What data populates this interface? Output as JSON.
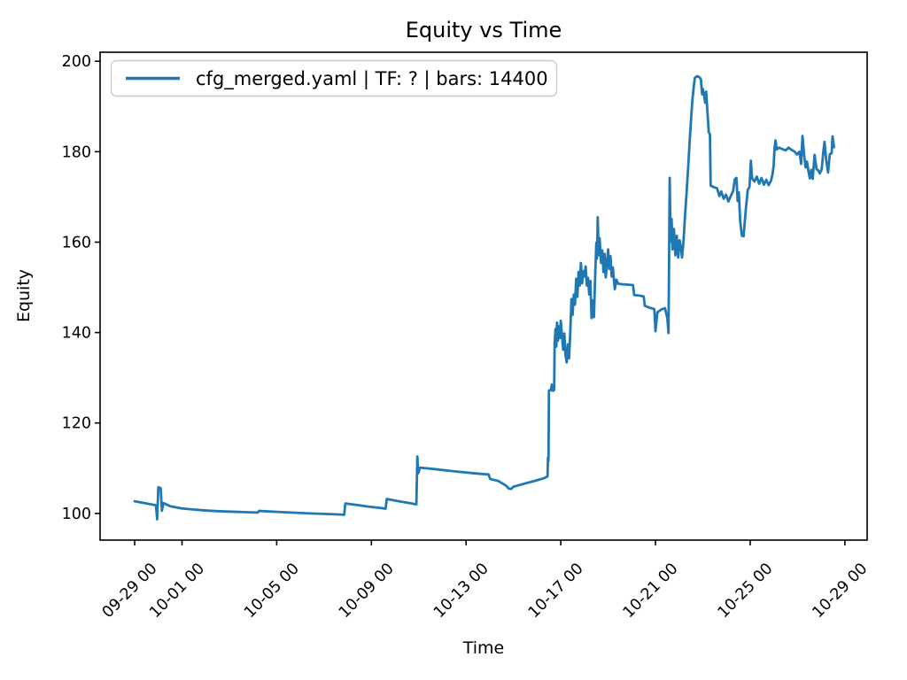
{
  "figure": {
    "title": "Equity vs Time",
    "xlabel": "Time",
    "ylabel": "Equity"
  },
  "legend": {
    "label": "cfg_merged.yaml | TF: ? | bars: 14400",
    "line_color": "#1f77b4",
    "border_color": "#cccccc"
  },
  "chart_data": {
    "type": "line",
    "title": "Equity vs Time",
    "xlabel": "Time",
    "ylabel": "Equity",
    "x_unit": "days since 09-29 00:00",
    "xlim": [
      -1.46,
      30.94
    ],
    "ylim": [
      94.1,
      202.0
    ],
    "grid": false,
    "legend_position": "upper left",
    "x_ticks": [
      {
        "day": 0,
        "label": "09-29 00"
      },
      {
        "day": 2,
        "label": "10-01 00"
      },
      {
        "day": 6,
        "label": "10-05 00"
      },
      {
        "day": 10,
        "label": "10-09 00"
      },
      {
        "day": 14,
        "label": "10-13 00"
      },
      {
        "day": 18,
        "label": "10-17 00"
      },
      {
        "day": 22,
        "label": "10-21 00"
      },
      {
        "day": 26,
        "label": "10-25 00"
      },
      {
        "day": 30,
        "label": "10-29 00"
      }
    ],
    "y_ticks": [
      100,
      120,
      140,
      160,
      180,
      200
    ],
    "series": [
      {
        "name": "cfg_merged.yaml | TF: ? | bars: 14400",
        "color": "#1f77b4",
        "points": [
          [
            0.0,
            102.7
          ],
          [
            0.3,
            102.4
          ],
          [
            0.6,
            102.1
          ],
          [
            0.9,
            101.8
          ],
          [
            0.95,
            98.7
          ],
          [
            1.0,
            105.8
          ],
          [
            1.1,
            105.6
          ],
          [
            1.15,
            100.6
          ],
          [
            1.22,
            102.3
          ],
          [
            1.5,
            101.6
          ],
          [
            2.0,
            101.1
          ],
          [
            2.5,
            100.85
          ],
          [
            3.0,
            100.65
          ],
          [
            3.5,
            100.5
          ],
          [
            4.0,
            100.4
          ],
          [
            4.6,
            100.3
          ],
          [
            5.2,
            100.2
          ],
          [
            5.25,
            100.55
          ],
          [
            5.6,
            100.45
          ],
          [
            6.2,
            100.3
          ],
          [
            6.8,
            100.15
          ],
          [
            7.4,
            100.0
          ],
          [
            8.0,
            99.9
          ],
          [
            8.5,
            99.8
          ],
          [
            8.85,
            99.7
          ],
          [
            8.9,
            102.2
          ],
          [
            9.4,
            101.85
          ],
          [
            9.9,
            101.5
          ],
          [
            10.4,
            101.2
          ],
          [
            10.6,
            101.05
          ],
          [
            10.65,
            103.2
          ],
          [
            11.1,
            102.75
          ],
          [
            11.55,
            102.35
          ],
          [
            11.9,
            102.0
          ],
          [
            11.94,
            112.6
          ],
          [
            11.98,
            108.9
          ],
          [
            12.05,
            110.1
          ],
          [
            12.5,
            109.9
          ],
          [
            13.1,
            109.55
          ],
          [
            13.7,
            109.2
          ],
          [
            14.3,
            108.9
          ],
          [
            14.95,
            108.6
          ],
          [
            15.02,
            107.6
          ],
          [
            15.35,
            107.2
          ],
          [
            15.7,
            106.1
          ],
          [
            15.8,
            105.5
          ],
          [
            15.9,
            105.4
          ],
          [
            16.0,
            105.9
          ],
          [
            16.4,
            106.5
          ],
          [
            16.9,
            107.2
          ],
          [
            17.3,
            107.8
          ],
          [
            17.44,
            108.2
          ],
          [
            17.46,
            112.4
          ],
          [
            17.48,
            111.6
          ],
          [
            17.5,
            127.2
          ],
          [
            17.58,
            127.3
          ],
          [
            17.62,
            128.5
          ],
          [
            17.66,
            127.1
          ],
          [
            17.72,
            127.3
          ],
          [
            17.74,
            137.8
          ],
          [
            17.78,
            140.8
          ],
          [
            17.81,
            136.9
          ],
          [
            17.84,
            142.2
          ],
          [
            17.88,
            138.2
          ],
          [
            17.92,
            141.4
          ],
          [
            17.96,
            138.8
          ],
          [
            18.0,
            142.6
          ],
          [
            18.05,
            139.4
          ],
          [
            18.1,
            136.2
          ],
          [
            18.15,
            139.8
          ],
          [
            18.2,
            134.9
          ],
          [
            18.25,
            133.4
          ],
          [
            18.3,
            137.4
          ],
          [
            18.35,
            134.3
          ],
          [
            18.4,
            140.0
          ],
          [
            18.45,
            147.4
          ],
          [
            18.5,
            143.9
          ],
          [
            18.55,
            148.4
          ],
          [
            18.6,
            146.2
          ],
          [
            18.65,
            151.9
          ],
          [
            18.7,
            147.9
          ],
          [
            18.75,
            153.4
          ],
          [
            18.8,
            150.4
          ],
          [
            18.85,
            155.4
          ],
          [
            18.9,
            150.9
          ],
          [
            18.95,
            153.6
          ],
          [
            19.0,
            152.4
          ],
          [
            19.05,
            154.6
          ],
          [
            19.1,
            150.4
          ],
          [
            19.15,
            152.1
          ],
          [
            19.2,
            148.4
          ],
          [
            19.25,
            151.4
          ],
          [
            19.3,
            143.2
          ],
          [
            19.35,
            147.1
          ],
          [
            19.4,
            143.4
          ],
          [
            19.45,
            152.0
          ],
          [
            19.5,
            159.9
          ],
          [
            19.53,
            156.4
          ],
          [
            19.56,
            165.5
          ],
          [
            19.6,
            157.1
          ],
          [
            19.64,
            160.9
          ],
          [
            19.7,
            155.4
          ],
          [
            19.75,
            158.2
          ],
          [
            19.8,
            153.4
          ],
          [
            19.85,
            157.4
          ],
          [
            19.9,
            152.2
          ],
          [
            19.95,
            155.1
          ],
          [
            20.0,
            158.4
          ],
          [
            20.05,
            154.1
          ],
          [
            20.1,
            156.9
          ],
          [
            20.15,
            152.4
          ],
          [
            20.2,
            154.4
          ],
          [
            20.28,
            149.6
          ],
          [
            20.35,
            151.7
          ],
          [
            20.42,
            150.8
          ],
          [
            20.6,
            150.7
          ],
          [
            20.85,
            150.6
          ],
          [
            21.05,
            150.5
          ],
          [
            21.1,
            148.3
          ],
          [
            21.3,
            148.2
          ],
          [
            21.5,
            148.0
          ],
          [
            21.55,
            145.9
          ],
          [
            21.75,
            145.5
          ],
          [
            21.95,
            145.2
          ],
          [
            22.0,
            140.3
          ],
          [
            22.08,
            144.5
          ],
          [
            22.25,
            145.1
          ],
          [
            22.4,
            145.4
          ],
          [
            22.5,
            143.2
          ],
          [
            22.55,
            139.9
          ],
          [
            22.6,
            174.2
          ],
          [
            22.64,
            160.1
          ],
          [
            22.68,
            165.1
          ],
          [
            22.72,
            158.4
          ],
          [
            22.78,
            162.9
          ],
          [
            22.84,
            157.1
          ],
          [
            22.9,
            161.4
          ],
          [
            22.96,
            156.6
          ],
          [
            23.02,
            160.4
          ],
          [
            23.08,
            158.7
          ],
          [
            23.12,
            156.6
          ],
          [
            23.18,
            160.0
          ],
          [
            23.25,
            166.0
          ],
          [
            23.32,
            171.5
          ],
          [
            23.38,
            176.5
          ],
          [
            23.44,
            182.0
          ],
          [
            23.5,
            187.0
          ],
          [
            23.56,
            191.5
          ],
          [
            23.62,
            194.5
          ],
          [
            23.66,
            196.3
          ],
          [
            23.75,
            196.7
          ],
          [
            23.85,
            196.5
          ],
          [
            23.92,
            196.0
          ],
          [
            23.97,
            192.7
          ],
          [
            24.0,
            193.9
          ],
          [
            24.05,
            192.5
          ],
          [
            24.1,
            190.8
          ],
          [
            24.14,
            193.3
          ],
          [
            24.18,
            190.0
          ],
          [
            24.25,
            184.3
          ],
          [
            24.3,
            183.8
          ],
          [
            24.33,
            172.5
          ],
          [
            24.45,
            172.2
          ],
          [
            24.6,
            171.9
          ],
          [
            24.7,
            170.2
          ],
          [
            24.78,
            171.2
          ],
          [
            24.88,
            169.6
          ],
          [
            24.98,
            170.5
          ],
          [
            25.08,
            169.0
          ],
          [
            25.18,
            170.2
          ],
          [
            25.28,
            171.3
          ],
          [
            25.35,
            173.9
          ],
          [
            25.42,
            174.2
          ],
          [
            25.47,
            169.1
          ],
          [
            25.52,
            171.0
          ],
          [
            25.58,
            164.5
          ],
          [
            25.65,
            161.4
          ],
          [
            25.72,
            161.3
          ],
          [
            25.82,
            167.5
          ],
          [
            25.9,
            171.6
          ],
          [
            25.97,
            172.2
          ],
          [
            26.03,
            178.0
          ],
          [
            26.08,
            174.1
          ],
          [
            26.18,
            173.4
          ],
          [
            26.28,
            174.5
          ],
          [
            26.38,
            172.9
          ],
          [
            26.48,
            174.2
          ],
          [
            26.58,
            172.7
          ],
          [
            26.68,
            173.8
          ],
          [
            26.78,
            172.6
          ],
          [
            26.88,
            173.6
          ],
          [
            26.94,
            174.9
          ],
          [
            26.99,
            176.8
          ],
          [
            27.03,
            180.9
          ],
          [
            27.07,
            182.5
          ],
          [
            27.12,
            180.5
          ],
          [
            27.22,
            180.9
          ],
          [
            27.35,
            180.6
          ],
          [
            27.5,
            180.3
          ],
          [
            27.62,
            180.9
          ],
          [
            27.75,
            180.4
          ],
          [
            27.88,
            180.0
          ],
          [
            27.98,
            179.4
          ],
          [
            28.08,
            180.0
          ],
          [
            28.15,
            177.3
          ],
          [
            28.21,
            183.5
          ],
          [
            28.28,
            179.2
          ],
          [
            28.34,
            176.5
          ],
          [
            28.4,
            177.8
          ],
          [
            28.46,
            175.7
          ],
          [
            28.52,
            174.1
          ],
          [
            28.58,
            176.0
          ],
          [
            28.64,
            174.0
          ],
          [
            28.72,
            179.3
          ],
          [
            28.8,
            176.2
          ],
          [
            28.87,
            175.9
          ],
          [
            28.94,
            175.2
          ],
          [
            29.02,
            176.1
          ],
          [
            29.09,
            180.0
          ],
          [
            29.14,
            182.2
          ],
          [
            29.21,
            178.1
          ],
          [
            29.29,
            175.4
          ],
          [
            29.36,
            179.4
          ],
          [
            29.44,
            179.7
          ],
          [
            29.48,
            183.4
          ],
          [
            29.54,
            181.0
          ]
        ]
      }
    ]
  }
}
